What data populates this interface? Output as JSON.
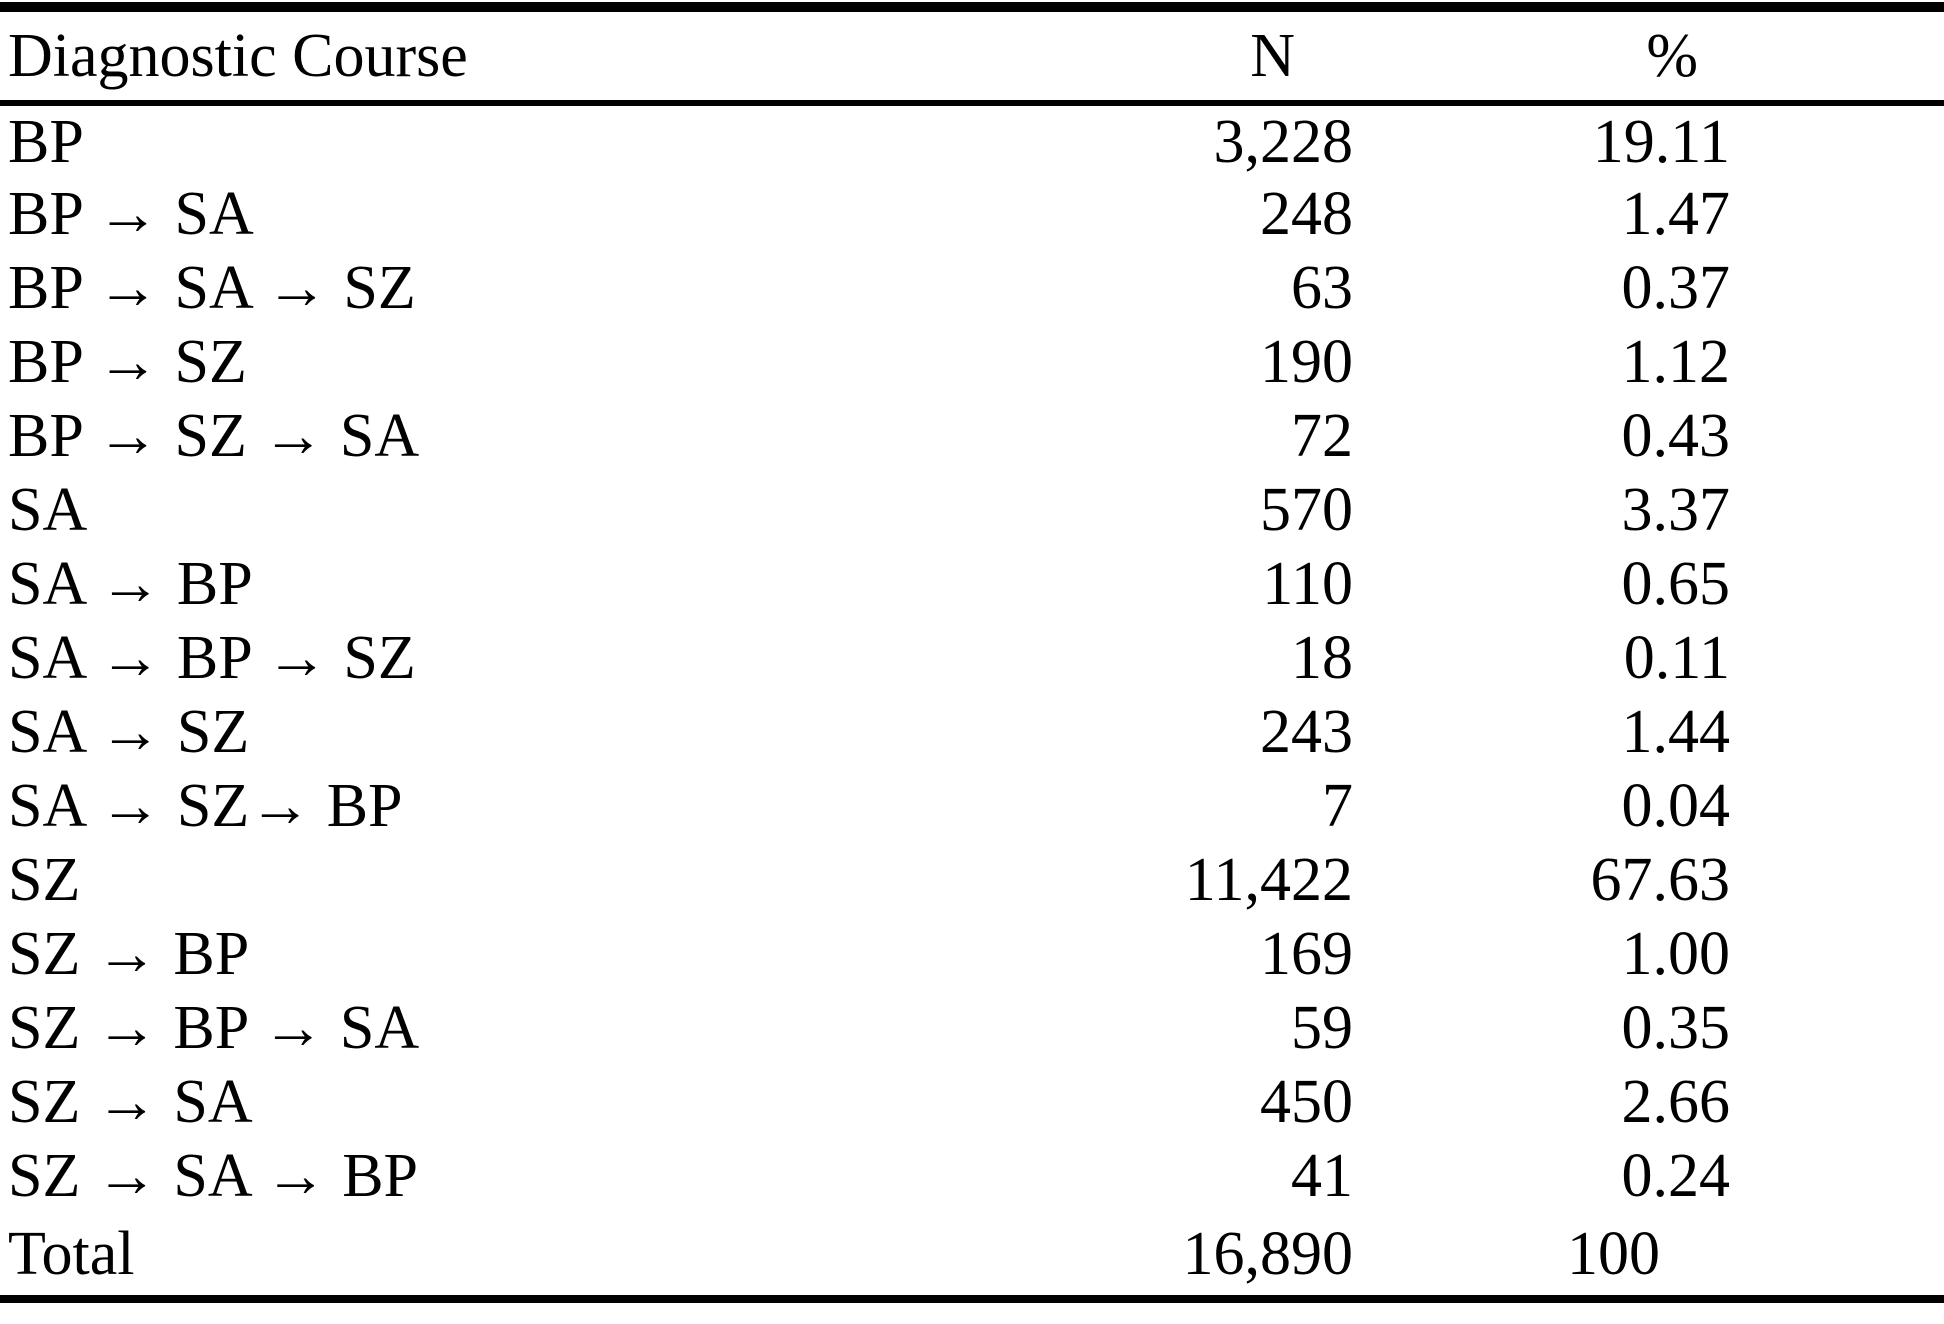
{
  "page": {
    "background_color": "#ffffff",
    "text_color": "#000000",
    "rule_color": "#000000"
  },
  "table": {
    "name": "Diagnostic Course frequency table",
    "columns": [
      {
        "key": "course",
        "label": "Diagnostic Course"
      },
      {
        "key": "n",
        "label": "N"
      },
      {
        "key": "pct",
        "label": "%"
      }
    ],
    "rows": [
      {
        "course": "BP",
        "n": "3,228",
        "pct": "19.11"
      },
      {
        "course": "BP → SA",
        "n": "248",
        "pct": "1.47"
      },
      {
        "course": "BP → SA → SZ",
        "n": "63",
        "pct": "0.37"
      },
      {
        "course": "BP → SZ",
        "n": "190",
        "pct": "1.12"
      },
      {
        "course": "BP → SZ → SA",
        "n": "72",
        "pct": "0.43"
      },
      {
        "course": "SA",
        "n": "570",
        "pct": "3.37"
      },
      {
        "course": "SA → BP",
        "n": "110",
        "pct": "0.65"
      },
      {
        "course": "SA → BP → SZ",
        "n": "18",
        "pct": "0.11"
      },
      {
        "course": "SA → SZ",
        "n": "243",
        "pct": "1.44"
      },
      {
        "course": "SA → SZ→ BP",
        "n": "7",
        "pct": "0.04"
      },
      {
        "course": "SZ",
        "n": "11,422",
        "pct": "67.63"
      },
      {
        "course": "SZ → BP",
        "n": "169",
        "pct": "1.00"
      },
      {
        "course": "SZ → BP → SA",
        "n": "59",
        "pct": "0.35"
      },
      {
        "course": "SZ → SA",
        "n": "450",
        "pct": "2.66"
      },
      {
        "course": "SZ → SA → BP",
        "n": "41",
        "pct": "0.24"
      },
      {
        "course": "Total",
        "n": "16,890",
        "pct": "100",
        "is_total": true
      }
    ]
  }
}
